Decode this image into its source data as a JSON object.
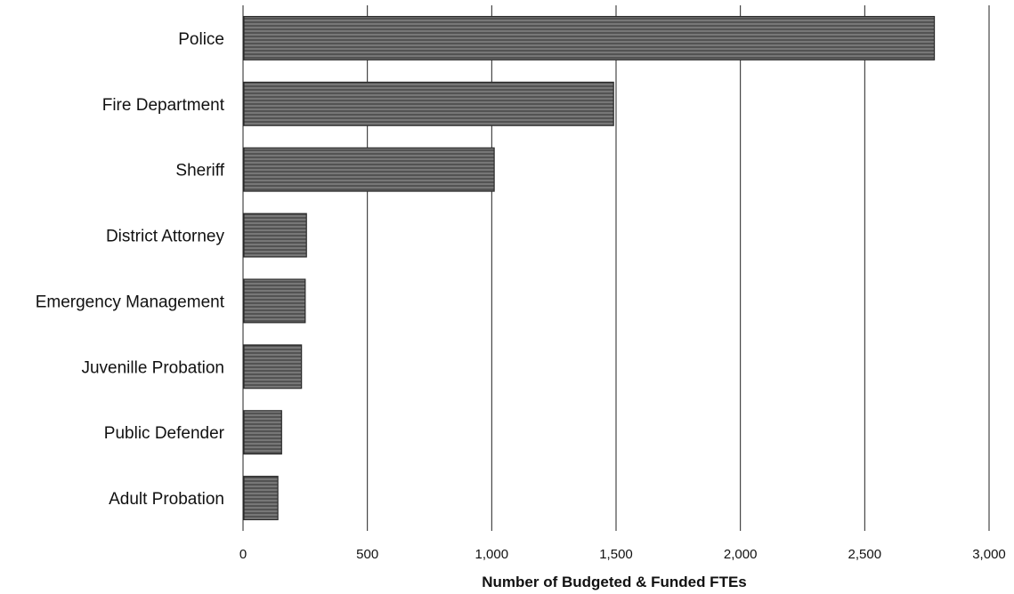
{
  "chart_data": {
    "type": "bar",
    "orientation": "horizontal",
    "categories": [
      "Police",
      "Fire Department",
      "Sheriff",
      "District Attorney",
      "Emergency Management",
      "Juvenille Probation",
      "Public Defender",
      "Adult Probation"
    ],
    "values": [
      2780,
      1490,
      1010,
      255,
      250,
      235,
      155,
      140
    ],
    "xlabel": "Number of Budgeted & Funded FTEs",
    "ylabel": "",
    "xlim": [
      0,
      3000
    ],
    "ticks": [
      "0",
      "500",
      "1,000",
      "1,500",
      "2,000",
      "2,500",
      "3,000"
    ],
    "tick_values": [
      0,
      500,
      1000,
      1500,
      2000,
      2500,
      3000
    ],
    "grid": true,
    "legend": "none",
    "bar_color": "#5a5a5a"
  }
}
